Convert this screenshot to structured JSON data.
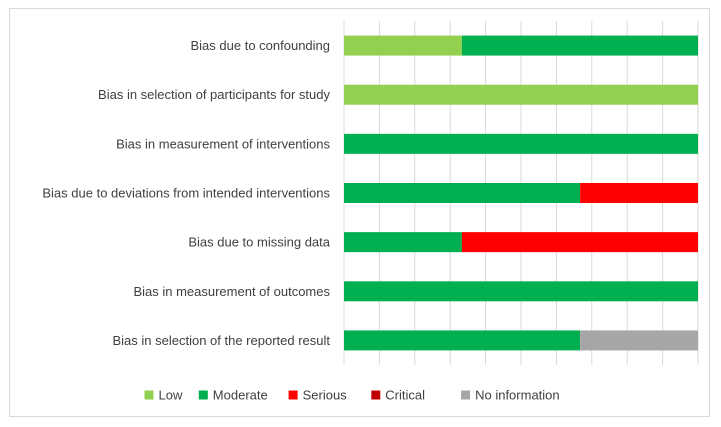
{
  "chart_data": {
    "type": "bar",
    "stacked": true,
    "orientation": "horizontal",
    "percent_scale": true,
    "categories": [
      "Bias due to confounding",
      "Bias in selection of participants for study",
      "Bias in measurement of interventions",
      "Bias due to deviations from intended interventions",
      "Bias due to missing data",
      "Bias in measurement of outcomes",
      "Bias in selection of the reported result"
    ],
    "series": [
      {
        "name": "Low",
        "color": "#92d050",
        "values": [
          33.3,
          100,
          0,
          0,
          0,
          0,
          0
        ]
      },
      {
        "name": "Moderate",
        "color": "#00b050",
        "values": [
          66.7,
          0,
          100,
          66.7,
          33.3,
          100,
          66.7
        ]
      },
      {
        "name": "Serious",
        "color": "#ff0000",
        "values": [
          0,
          0,
          0,
          33.3,
          66.7,
          0,
          0
        ]
      },
      {
        "name": "Critical",
        "color": "#c00000",
        "values": [
          0,
          0,
          0,
          0,
          0,
          0,
          0
        ]
      },
      {
        "name": "No information",
        "color": "#a6a6a6",
        "values": [
          0,
          0,
          0,
          0,
          0,
          0,
          33.3
        ]
      }
    ],
    "xlim": [
      0,
      100
    ],
    "grid": true,
    "legend_position": "bottom"
  }
}
